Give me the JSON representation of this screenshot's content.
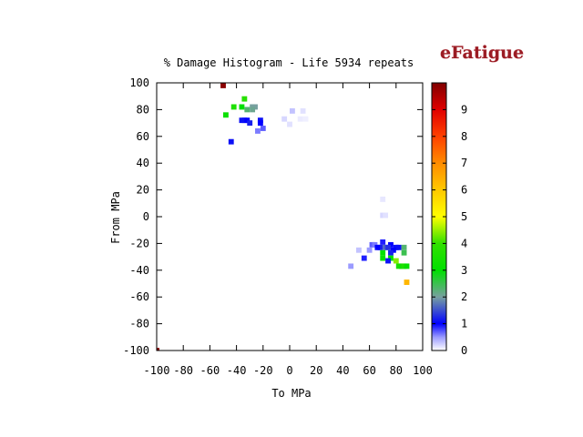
{
  "logo": "eFatigue",
  "chart_data": {
    "type": "heatmap",
    "title": "% Damage Histogram - Life 5934 repeats",
    "xlabel": "To MPa",
    "ylabel": "From MPa",
    "xlim": [
      -100,
      100
    ],
    "ylim": [
      -100,
      100
    ],
    "xticks": [
      "-100",
      "-80",
      "-60",
      "-40",
      "-20",
      "0",
      "20",
      "40",
      "60",
      "80",
      "100"
    ],
    "yticks": [
      "-100",
      "-80",
      "-60",
      "-40",
      "-20",
      "0",
      "20",
      "40",
      "60",
      "80",
      "100"
    ],
    "colorbar": {
      "range": [
        0,
        10
      ],
      "ticks": [
        "0",
        "1",
        "2",
        "3",
        "4",
        "5",
        "6",
        "7",
        "8",
        "9"
      ],
      "stops": [
        [
          0,
          "#ffffff"
        ],
        [
          0.5,
          "#9b9bff"
        ],
        [
          1,
          "#0000ff"
        ],
        [
          2,
          "#78a0a0"
        ],
        [
          3,
          "#00e000"
        ],
        [
          4,
          "#32e000"
        ],
        [
          5,
          "#ffff00"
        ],
        [
          6,
          "#ffc800"
        ],
        [
          7,
          "#ff8c00"
        ],
        [
          8,
          "#ff4000"
        ],
        [
          9,
          "#e00000"
        ],
        [
          10,
          "#800000"
        ]
      ]
    },
    "grid": false,
    "cell_size": 4,
    "cells": [
      {
        "x": -50,
        "y": 98,
        "v": 9.9
      },
      {
        "x": -34,
        "y": 88,
        "v": 3.8
      },
      {
        "x": -42,
        "y": 82,
        "v": 3.6
      },
      {
        "x": -36,
        "y": 82,
        "v": 3.0
      },
      {
        "x": -28,
        "y": 82,
        "v": 2.0
      },
      {
        "x": -26,
        "y": 82,
        "v": 2.0
      },
      {
        "x": -32,
        "y": 80,
        "v": 2.3
      },
      {
        "x": -28,
        "y": 80,
        "v": 2.1
      },
      {
        "x": -48,
        "y": 76,
        "v": 3.2
      },
      {
        "x": -36,
        "y": 72,
        "v": 1.1
      },
      {
        "x": -34,
        "y": 72,
        "v": 1.1
      },
      {
        "x": -32,
        "y": 72,
        "v": 1.0
      },
      {
        "x": -22,
        "y": 72,
        "v": 1.1
      },
      {
        "x": -30,
        "y": 70,
        "v": 1.2
      },
      {
        "x": -22,
        "y": 70,
        "v": 1.0
      },
      {
        "x": -20,
        "y": 66,
        "v": 0.7
      },
      {
        "x": -24,
        "y": 64,
        "v": 0.6
      },
      {
        "x": -44,
        "y": 56,
        "v": 1.1
      },
      {
        "x": 2,
        "y": 79,
        "v": 0.3
      },
      {
        "x": 10,
        "y": 79,
        "v": 0.15
      },
      {
        "x": -4,
        "y": 73,
        "v": 0.2
      },
      {
        "x": 8,
        "y": 73,
        "v": 0.1
      },
      {
        "x": 12,
        "y": 73,
        "v": 0.08
      },
      {
        "x": 0,
        "y": 69,
        "v": 0.15
      },
      {
        "x": 70,
        "y": 13,
        "v": 0.12
      },
      {
        "x": 70,
        "y": 1,
        "v": 0.2
      },
      {
        "x": 72,
        "y": 1,
        "v": 0.15
      },
      {
        "x": 62,
        "y": -21,
        "v": 0.7
      },
      {
        "x": 64,
        "y": -21,
        "v": 0.6
      },
      {
        "x": 70,
        "y": -19,
        "v": 0.9
      },
      {
        "x": 76,
        "y": -21,
        "v": 1.0
      },
      {
        "x": 68,
        "y": -23,
        "v": 1.2
      },
      {
        "x": 72,
        "y": -23,
        "v": 1.6
      },
      {
        "x": 74,
        "y": -23,
        "v": 1.3
      },
      {
        "x": 66,
        "y": -23,
        "v": 1.0
      },
      {
        "x": 80,
        "y": -23,
        "v": 1.1
      },
      {
        "x": 82,
        "y": -23,
        "v": 1.1
      },
      {
        "x": 86,
        "y": -23,
        "v": 2.3
      },
      {
        "x": 78,
        "y": -25,
        "v": 1.0
      },
      {
        "x": 52,
        "y": -25,
        "v": 0.3
      },
      {
        "x": 60,
        "y": -25,
        "v": 0.5
      },
      {
        "x": 70,
        "y": -27,
        "v": 3.1
      },
      {
        "x": 76,
        "y": -27,
        "v": 1.2
      },
      {
        "x": 86,
        "y": -27,
        "v": 2.5
      },
      {
        "x": 70,
        "y": -31,
        "v": 3.2
      },
      {
        "x": 76,
        "y": -31,
        "v": 3.0
      },
      {
        "x": 56,
        "y": -31,
        "v": 0.9
      },
      {
        "x": 74,
        "y": -33,
        "v": 1.1
      },
      {
        "x": 80,
        "y": -33,
        "v": 4.4
      },
      {
        "x": 82,
        "y": -37,
        "v": 3.5
      },
      {
        "x": 84,
        "y": -37,
        "v": 3.3
      },
      {
        "x": 86,
        "y": -37,
        "v": 3.6
      },
      {
        "x": 88,
        "y": -37,
        "v": 3.1
      },
      {
        "x": 46,
        "y": -37,
        "v": 0.5
      },
      {
        "x": 88,
        "y": -49,
        "v": 6.3
      },
      {
        "x": -100,
        "y": -100,
        "v": 9.9
      }
    ]
  }
}
